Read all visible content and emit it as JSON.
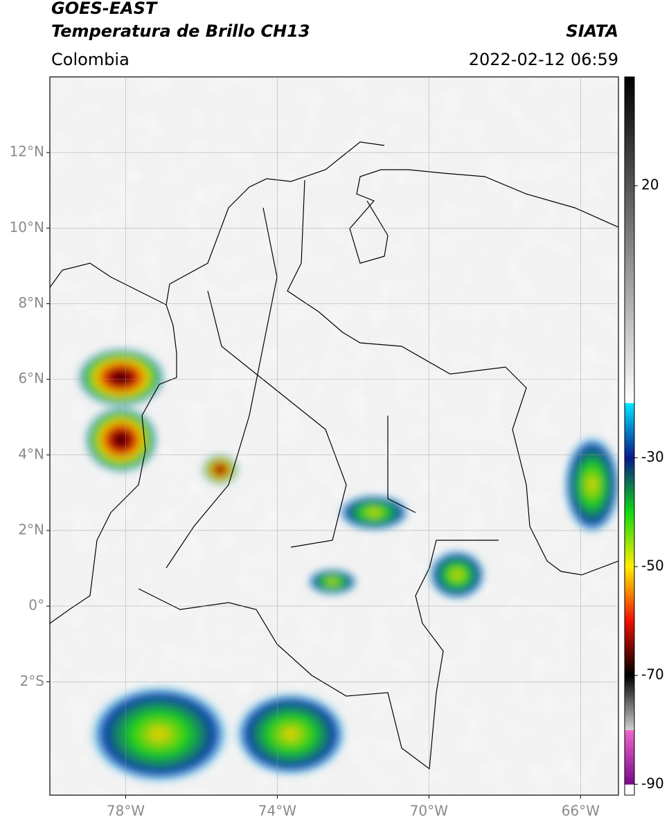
{
  "header": {
    "title": "GOES-EAST",
    "subtitle": "Temperatura de Brillo CH13",
    "source": "SIATA",
    "region": "Colombia",
    "datetime": "2022-02-12 06:59"
  },
  "map": {
    "lonlim": [
      -80,
      -65
    ],
    "latlim": [
      -5,
      14
    ],
    "grid": true,
    "lat_ticks": [
      {
        "value": 12,
        "label": "12°N"
      },
      {
        "value": 10,
        "label": "10°N"
      },
      {
        "value": 8,
        "label": "8°N"
      },
      {
        "value": 6,
        "label": "6°N"
      },
      {
        "value": 4,
        "label": "4°N"
      },
      {
        "value": 2,
        "label": "2°N"
      },
      {
        "value": 0,
        "label": "0°"
      },
      {
        "value": -2,
        "label": "2°S"
      }
    ],
    "lon_ticks": [
      {
        "value": -78,
        "label": "78°W"
      },
      {
        "value": -74,
        "label": "74°W"
      },
      {
        "value": -70,
        "label": "70°W"
      },
      {
        "value": -66,
        "label": "66°W"
      }
    ]
  },
  "colorbar": {
    "lim": [
      -92,
      40
    ],
    "ticks": [
      20,
      -30,
      -50,
      -70,
      -90
    ],
    "stops": [
      {
        "value": 40,
        "color": "#000000"
      },
      {
        "value": -19.9,
        "color": "#ffffff"
      },
      {
        "value": -20,
        "color": "#00e5ff"
      },
      {
        "value": -30,
        "color": "#0a1a8c"
      },
      {
        "value": -40,
        "color": "#11d811"
      },
      {
        "value": -50,
        "color": "#ffee00"
      },
      {
        "value": -60,
        "color": "#ee1100"
      },
      {
        "value": -70,
        "color": "#000000"
      },
      {
        "value": -80,
        "color": "#cfcfcf"
      },
      {
        "value": -80.1,
        "color": "#ee66cc"
      },
      {
        "value": -90,
        "color": "#7a0a8a"
      },
      {
        "value": -90.1,
        "color": "#ffffff"
      },
      {
        "value": -92,
        "color": "#ffffff"
      }
    ]
  }
}
